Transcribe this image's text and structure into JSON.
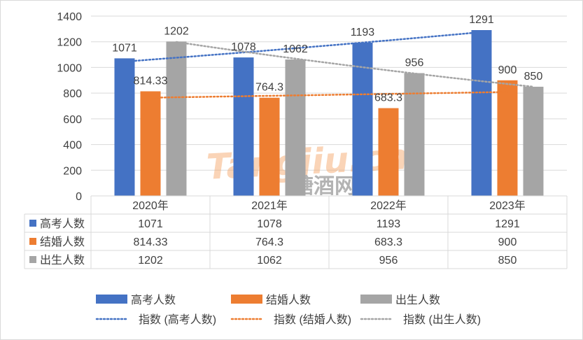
{
  "chart_data": {
    "type": "bar",
    "categories": [
      "2020年",
      "2021年",
      "2022年",
      "2023年"
    ],
    "ylim": [
      0,
      1400
    ],
    "yticks": [
      0,
      200,
      400,
      600,
      800,
      1000,
      1200,
      1400
    ],
    "series": [
      {
        "name": "高考人数",
        "color": "#4472C4",
        "values": [
          1071,
          1078,
          1193,
          1291
        ],
        "labels": [
          "1071",
          "1078",
          "1193",
          "1291"
        ]
      },
      {
        "name": "结婚人数",
        "color": "#ED7D31",
        "values": [
          814.33,
          764.3,
          683.3,
          900
        ],
        "labels": [
          "814.33",
          "764.3",
          "683.3",
          "900"
        ]
      },
      {
        "name": "出生人数",
        "color": "#A5A5A5",
        "values": [
          1202,
          1062,
          956,
          850
        ],
        "labels": [
          "1202",
          "1062",
          "956",
          "850"
        ]
      }
    ],
    "trendlines": [
      {
        "name": "指数 (高考人数)",
        "color": "#4472C4",
        "series": 0
      },
      {
        "name": "指数 (结婚人数)",
        "color": "#ED7D31",
        "series": 1
      },
      {
        "name": "指数 (出生人数)",
        "color": "#A5A5A5",
        "series": 2
      }
    ],
    "data_table": true,
    "title": "",
    "xlabel": "",
    "ylabel": ""
  },
  "watermark": {
    "text_en": "Tangjiu.cn",
    "text_cn": "糖酒网",
    "color": "#F4A261"
  }
}
